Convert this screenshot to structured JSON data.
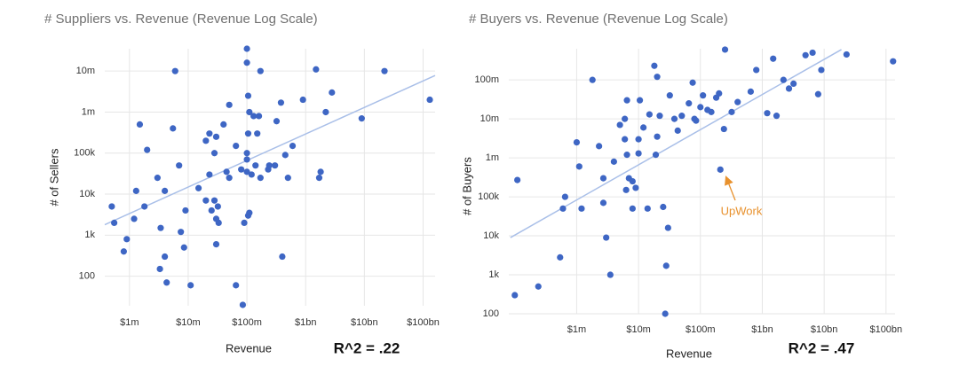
{
  "chart_data": [
    {
      "type": "scatter",
      "title": "# Suppliers vs. Revenue (Revenue Log Scale)",
      "x_label": "Revenue",
      "y_label": "# of Sellers",
      "note": "R^2 = .22",
      "xscale": "log",
      "yscale": "log",
      "grid": true,
      "color": "#3e66c4",
      "trend_color": "#a9bfe8",
      "xlim": [
        380000,
        160000000000
      ],
      "ylim": [
        19,
        35000000
      ],
      "xticks": [
        {
          "value": 1000000,
          "label": "$1m"
        },
        {
          "value": 10000000,
          "label": "$10m"
        },
        {
          "value": 100000000,
          "label": "$100m"
        },
        {
          "value": 1000000000,
          "label": "$1bn"
        },
        {
          "value": 10000000000,
          "label": "$10bn"
        },
        {
          "value": 100000000000,
          "label": "$100bn"
        }
      ],
      "yticks": [
        {
          "value": 100,
          "label": "100"
        },
        {
          "value": 1000,
          "label": "1k"
        },
        {
          "value": 10000,
          "label": "10k"
        },
        {
          "value": 100000,
          "label": "100k"
        },
        {
          "value": 1000000,
          "label": "1m"
        },
        {
          "value": 10000000,
          "label": "10m"
        }
      ],
      "trendline": {
        "x": [
          380000,
          160000000000
        ],
        "values": [
          1800,
          7800000
        ]
      },
      "x": [
        500000.0,
        550000.0,
        900000.0,
        800000.0,
        1200000.0,
        1300000.0,
        1500000.0,
        1800000.0,
        2000000.0,
        3000000.0,
        3400000.0,
        3300000.0,
        4000000.0,
        4000000.0,
        4300000.0,
        5500000.0,
        6000000.0,
        7000000.0,
        7500000.0,
        8500000.0,
        9000000.0,
        11000000.0,
        15000000.0,
        20000000.0,
        20000000.0,
        23000000.0,
        30000000.0,
        23000000.0,
        28000000.0,
        25000000.0,
        28000000.0,
        30000000.0,
        32000000.0,
        30000000.0,
        33000000.0,
        40000000.0,
        50000000.0,
        45000000.0,
        50000000.0,
        65000000.0,
        65000000.0,
        80000000.0,
        85000000.0,
        90000000.0,
        100000000.0,
        100000000.0,
        100000000.0,
        100000000.0,
        100000000.0,
        105000000.0,
        105000000.0,
        110000000.0,
        110000000.0,
        105000000.0,
        130000000.0,
        120000000.0,
        140000000.0,
        150000000.0,
        160000000.0,
        170000000.0,
        170000000.0,
        230000000.0,
        240000000.0,
        300000000.0,
        320000000.0,
        380000000.0,
        400000000.0,
        450000000.0,
        500000000.0,
        600000000.0,
        900000000.0,
        1500000000.0,
        1700000000.0,
        1800000000.0,
        2200000000.0,
        2800000000.0,
        9000000000.0,
        22000000000.0,
        130000000000.0
      ],
      "values": [
        5000.0,
        2000.0,
        800,
        400,
        2500.0,
        12000.0,
        500000.0,
        5000.0,
        120000.0,
        25000.0,
        1500.0,
        150,
        300,
        12000.0,
        70,
        400000.0,
        10000000.0,
        50000.0,
        1200.0,
        500,
        4000.0,
        60,
        14000.0,
        7000.0,
        200000.0,
        300000.0,
        250000.0,
        30000.0,
        100000.0,
        4000.0,
        7000.0,
        2500.0,
        5000.0,
        600,
        2000.0,
        500000.0,
        1500000.0,
        35000.0,
        25000.0,
        150000.0,
        60,
        40000.0,
        20,
        2000.0,
        35000.0,
        70000.0,
        100000.0,
        35000000.0,
        16000000.0,
        2500000.0,
        300000.0,
        1000000.0,
        3500.0,
        3000.0,
        800000.0,
        30000.0,
        50000.0,
        300000.0,
        800000.0,
        10000000.0,
        25000.0,
        40000.0,
        50000.0,
        50000.0,
        600000.0,
        1700000.0,
        300,
        90000.0,
        25000.0,
        150000.0,
        2000000.0,
        11000000.0,
        25000.0,
        35000.0,
        1000000.0,
        3000000.0,
        700000.0,
        10000000.0,
        2000000.0
      ]
    },
    {
      "type": "scatter",
      "title": "# Buyers vs. Revenue (Revenue Log Scale)",
      "x_label": "Revenue",
      "y_label": "# of Buyers",
      "note": "R^2 = .47",
      "annotation": "UpWork",
      "annotation_color": "#e8912d",
      "xscale": "log",
      "yscale": "log",
      "grid": true,
      "color": "#3e66c4",
      "trend_color": "#a9bfe8",
      "xlim": [
        80000,
        140000000000
      ],
      "ylim": [
        100,
        630000000
      ],
      "xticks": [
        {
          "value": 1000000,
          "label": "$1m"
        },
        {
          "value": 10000000,
          "label": "$10m"
        },
        {
          "value": 100000000,
          "label": "$100m"
        },
        {
          "value": 1000000000,
          "label": "$1bn"
        },
        {
          "value": 10000000000,
          "label": "$10bn"
        },
        {
          "value": 100000000000,
          "label": "$100bn"
        }
      ],
      "yticks": [
        100,
        {
          "value": 1000,
          "label": "1k"
        },
        {
          "value": 10000,
          "label": "10k"
        },
        {
          "value": 100000,
          "label": "100k"
        },
        {
          "value": 1000000,
          "label": "1m"
        },
        {
          "value": 10000000,
          "label": "10m"
        },
        {
          "value": 100000000,
          "label": "100m"
        }
      ],
      "trendline": {
        "x": [
          85000,
          19000000000
        ],
        "values": [
          9000,
          600000000
        ]
      },
      "x": [
        110000.0,
        100000.0,
        240000.0,
        540000.0,
        600000.0,
        650000.0,
        1000000.0,
        1100000.0,
        1200000.0,
        1800000.0,
        2300000.0,
        2700000.0,
        2700000.0,
        3000000.0,
        3500000.0,
        4000000.0,
        5000000.0,
        6000000.0,
        6500000.0,
        6000000.0,
        6500000.0,
        6300000.0,
        7000000.0,
        8000000.0,
        8000000.0,
        9000000.0,
        10000000.0,
        10000000.0,
        10500000.0,
        12000000.0,
        14000000.0,
        15000000.0,
        18000000.0,
        20000000.0,
        20000000.0,
        19000000.0,
        22000000.0,
        25000000.0,
        27000000.0,
        28000000.0,
        30000000.0,
        32000000.0,
        38000000.0,
        43000000.0,
        50000000.0,
        65000000.0,
        75000000.0,
        80000000.0,
        85000000.0,
        100000000.0,
        110000000.0,
        130000000.0,
        150000000.0,
        180000000.0,
        200000000.0,
        250000000.0,
        240000000.0,
        210000000.0,
        320000000.0,
        400000000.0,
        650000000.0,
        800000000.0,
        1200000000.0,
        1500000000.0,
        1700000000.0,
        2200000000.0,
        2700000000.0,
        3200000000.0,
        5000000000.0,
        6500000000.0,
        8000000000.0,
        9000000000.0,
        23000000000.0,
        130000000000.0
      ],
      "values": [
        270000.0,
        300,
        500,
        2800.0,
        50000.0,
        100000.0,
        2500000.0,
        600000.0,
        50000.0,
        100000000.0,
        2000000.0,
        70000.0,
        300000.0,
        9000.0,
        1000.0,
        800000.0,
        7000000.0,
        10000000.0,
        30000000.0,
        3000000.0,
        1200000.0,
        150000.0,
        300000.0,
        250000.0,
        50000.0,
        170000.0,
        1300000.0,
        3000000.0,
        30000000.0,
        6000000.0,
        50000.0,
        13000000.0,
        230000000.0,
        120000000.0,
        3500000.0,
        1200000.0,
        12000000.0,
        55000.0,
        100,
        1700.0,
        16000.0,
        40000000.0,
        10000000.0,
        5000000.0,
        12000000.0,
        25000000.0,
        85000000.0,
        10000000.0,
        9000000.0,
        20000000.0,
        40000000.0,
        17000000.0,
        15000000.0,
        35000000.0,
        45000000.0,
        600000000.0,
        5500000.0,
        500000.0,
        15000000.0,
        27000000.0,
        50000000.0,
        180000000.0,
        14000000.0,
        350000000.0,
        12000000.0,
        100000000.0,
        60000000.0,
        80000000.0,
        430000000.0,
        500000000.0,
        43000000.0,
        180000000.0,
        450000000.0,
        300000000.0
      ]
    }
  ]
}
